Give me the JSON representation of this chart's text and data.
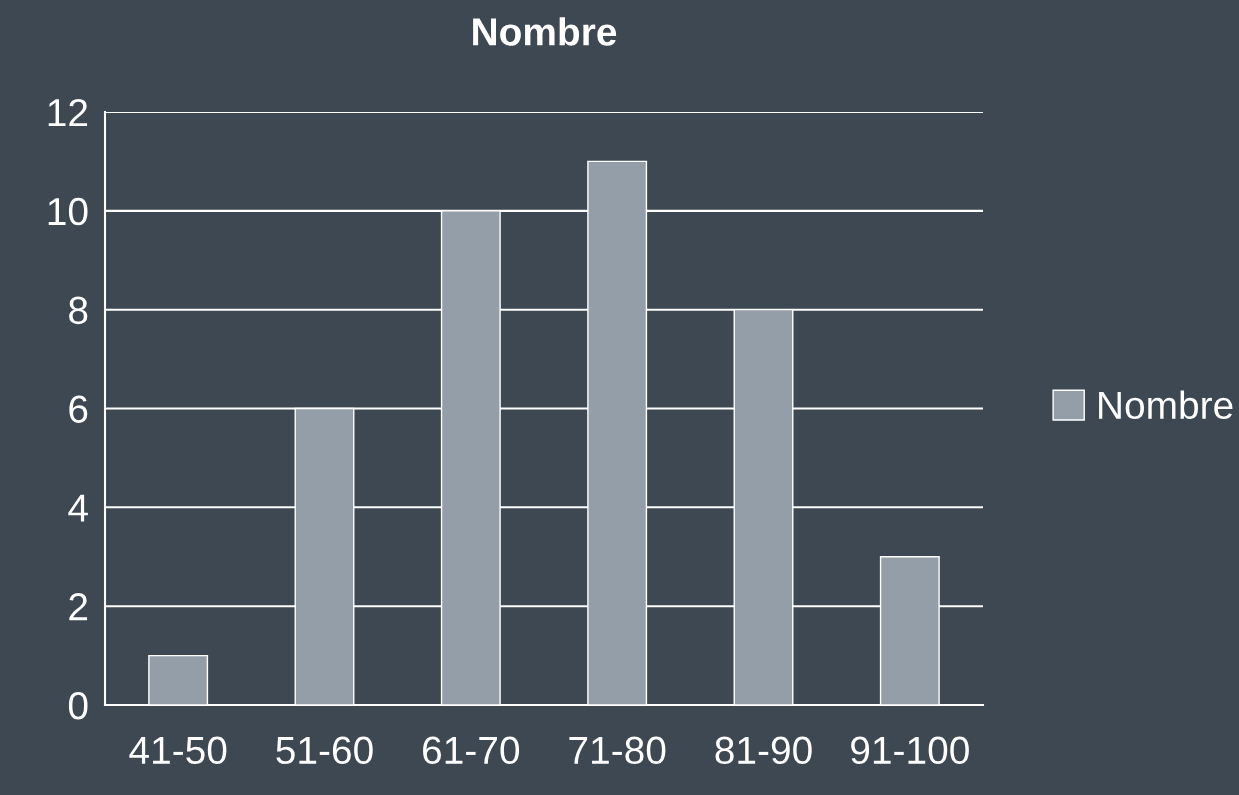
{
  "chart_data": {
    "type": "bar",
    "title": "Nombre",
    "categories": [
      "41-50",
      "51-60",
      "61-70",
      "71-80",
      "81-90",
      "91-100"
    ],
    "series": [
      {
        "name": "Nombre",
        "color": "#949ea8",
        "values": [
          1,
          6,
          10,
          11,
          8,
          3
        ]
      }
    ],
    "ylim": [
      0,
      12
    ],
    "yticks": [
      0,
      2,
      4,
      6,
      8,
      10,
      12
    ],
    "grid": "y",
    "legend": "right"
  }
}
